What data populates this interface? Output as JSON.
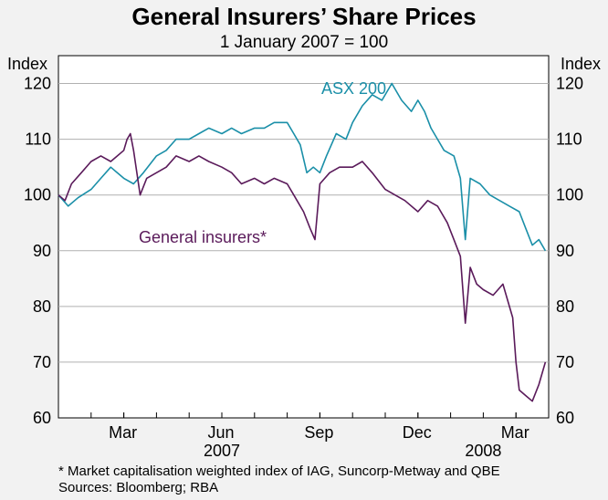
{
  "chart_data": {
    "type": "line",
    "title": "General Insurers’ Share Prices",
    "subtitle": "1 January 2007 = 100",
    "ylabel_left": "Index",
    "ylabel_right": "Index",
    "ylim": [
      60,
      125
    ],
    "yticks": [
      60,
      70,
      80,
      90,
      100,
      110,
      120
    ],
    "x_range_months": [
      0,
      15
    ],
    "xticks": [
      {
        "label": "Mar",
        "month": 2
      },
      {
        "label": "Jun",
        "month": 5
      },
      {
        "label": "Sep",
        "month": 8
      },
      {
        "label": "Dec",
        "month": 11
      },
      {
        "label": "Mar",
        "month": 14
      }
    ],
    "year_labels": [
      {
        "label": "2007",
        "month": 5
      },
      {
        "label": "2008",
        "month": 13
      }
    ],
    "series": [
      {
        "name": "ASX 200",
        "label": "ASX 200",
        "color": "#1a8fa8",
        "points": [
          [
            0,
            100
          ],
          [
            0.3,
            98
          ],
          [
            0.6,
            99.5
          ],
          [
            1,
            101
          ],
          [
            1.3,
            103
          ],
          [
            1.6,
            105
          ],
          [
            2,
            103
          ],
          [
            2.3,
            102
          ],
          [
            2.6,
            104
          ],
          [
            3,
            107
          ],
          [
            3.3,
            108
          ],
          [
            3.6,
            110
          ],
          [
            4,
            110
          ],
          [
            4.3,
            111
          ],
          [
            4.6,
            112
          ],
          [
            5,
            111
          ],
          [
            5.3,
            112
          ],
          [
            5.6,
            111
          ],
          [
            6,
            112
          ],
          [
            6.3,
            112
          ],
          [
            6.6,
            113
          ],
          [
            7,
            113
          ],
          [
            7.2,
            111
          ],
          [
            7.4,
            109
          ],
          [
            7.6,
            104
          ],
          [
            7.8,
            105
          ],
          [
            8,
            104
          ],
          [
            8.2,
            107
          ],
          [
            8.5,
            111
          ],
          [
            8.8,
            110
          ],
          [
            9,
            113
          ],
          [
            9.3,
            116
          ],
          [
            9.6,
            118
          ],
          [
            9.9,
            117
          ],
          [
            10.2,
            120
          ],
          [
            10.5,
            117
          ],
          [
            10.8,
            115
          ],
          [
            11,
            117
          ],
          [
            11.2,
            115
          ],
          [
            11.4,
            112
          ],
          [
            11.6,
            110
          ],
          [
            11.8,
            108
          ],
          [
            12.1,
            107
          ],
          [
            12.3,
            103
          ],
          [
            12.45,
            92
          ],
          [
            12.6,
            103
          ],
          [
            12.9,
            102
          ],
          [
            13.2,
            100
          ],
          [
            13.5,
            99
          ],
          [
            13.8,
            98
          ],
          [
            14.1,
            97
          ],
          [
            14.3,
            94
          ],
          [
            14.5,
            91
          ],
          [
            14.7,
            92
          ],
          [
            14.9,
            90
          ]
        ]
      },
      {
        "name": "General insurers*",
        "label": "General insurers*",
        "color": "#5a1a5a",
        "points": [
          [
            0,
            100
          ],
          [
            0.2,
            99
          ],
          [
            0.4,
            102
          ],
          [
            0.7,
            104
          ],
          [
            1,
            106
          ],
          [
            1.3,
            107
          ],
          [
            1.6,
            106
          ],
          [
            2,
            108
          ],
          [
            2.1,
            110
          ],
          [
            2.2,
            111
          ],
          [
            2.3,
            108
          ],
          [
            2.5,
            100
          ],
          [
            2.7,
            103
          ],
          [
            3,
            104
          ],
          [
            3.3,
            105
          ],
          [
            3.6,
            107
          ],
          [
            4,
            106
          ],
          [
            4.3,
            107
          ],
          [
            4.6,
            106
          ],
          [
            5,
            105
          ],
          [
            5.3,
            104
          ],
          [
            5.6,
            102
          ],
          [
            6,
            103
          ],
          [
            6.3,
            102
          ],
          [
            6.6,
            103
          ],
          [
            7,
            102
          ],
          [
            7.2,
            100
          ],
          [
            7.5,
            97
          ],
          [
            7.7,
            94
          ],
          [
            7.85,
            92
          ],
          [
            8,
            102
          ],
          [
            8.3,
            104
          ],
          [
            8.6,
            105
          ],
          [
            9,
            105
          ],
          [
            9.3,
            106
          ],
          [
            9.6,
            104
          ],
          [
            10,
            101
          ],
          [
            10.3,
            100
          ],
          [
            10.6,
            99
          ],
          [
            11,
            97
          ],
          [
            11.3,
            99
          ],
          [
            11.6,
            98
          ],
          [
            11.9,
            95
          ],
          [
            12.1,
            92
          ],
          [
            12.3,
            89
          ],
          [
            12.45,
            77
          ],
          [
            12.6,
            87
          ],
          [
            12.8,
            84
          ],
          [
            13,
            83
          ],
          [
            13.3,
            82
          ],
          [
            13.6,
            84
          ],
          [
            13.9,
            78
          ],
          [
            14,
            70
          ],
          [
            14.1,
            65
          ],
          [
            14.3,
            64
          ],
          [
            14.5,
            63
          ],
          [
            14.7,
            66
          ],
          [
            14.9,
            70
          ]
        ]
      }
    ],
    "footnotes": [
      "*  Market capitalisation weighted index of IAG, Suncorp-Metway and QBE",
      "Sources: Bloomberg; RBA"
    ]
  }
}
